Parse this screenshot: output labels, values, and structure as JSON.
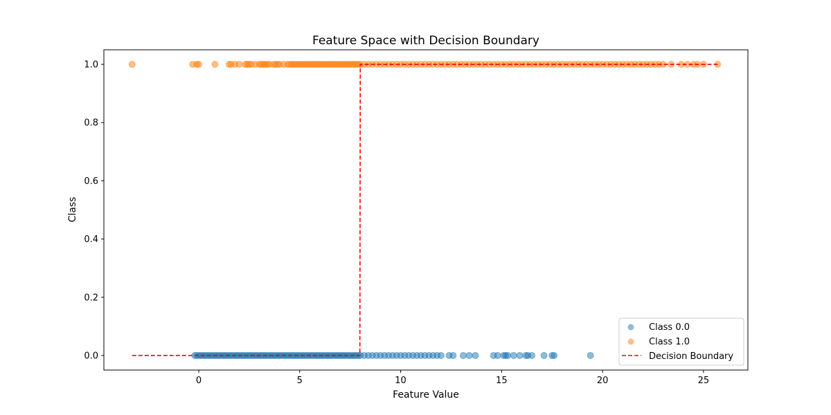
{
  "chart_data": {
    "type": "scatter",
    "title": "Feature Space with Decision Boundary",
    "xlabel": "Feature Value",
    "ylabel": "Class",
    "xlim": [
      -4.7,
      27.2
    ],
    "ylim": [
      -0.05,
      1.05
    ],
    "xticks": [
      0,
      5,
      10,
      15,
      20,
      25
    ],
    "yticks": [
      0.0,
      0.2,
      0.4,
      0.6,
      0.8,
      1.0
    ],
    "xtick_labels": [
      "0",
      "5",
      "10",
      "15",
      "20",
      "25"
    ],
    "ytick_labels": [
      "0.0",
      "0.2",
      "0.4",
      "0.6",
      "0.8",
      "1.0"
    ],
    "grid": false,
    "legend_position": "bottom-right",
    "series": [
      {
        "name": "Class 0.0",
        "color": "#1f77b4",
        "y": 0.0,
        "x": [
          -0.2,
          -0.1,
          0.0,
          0.1,
          0.2,
          0.3,
          0.4,
          0.5,
          0.6,
          0.7,
          0.8,
          0.9,
          1.0,
          1.1,
          1.2,
          1.3,
          1.4,
          1.5,
          1.6,
          1.7,
          1.8,
          1.9,
          2.0,
          2.1,
          2.2,
          2.3,
          2.4,
          2.5,
          2.6,
          2.7,
          2.8,
          2.9,
          3.0,
          3.1,
          3.2,
          3.3,
          3.4,
          3.5,
          3.6,
          3.7,
          3.8,
          3.9,
          4.0,
          4.1,
          4.2,
          4.3,
          4.4,
          4.5,
          4.6,
          4.7,
          4.8,
          4.9,
          5.0,
          5.1,
          5.2,
          5.3,
          5.4,
          5.5,
          5.6,
          5.7,
          5.8,
          5.9,
          6.0,
          6.1,
          6.2,
          6.3,
          6.4,
          6.5,
          6.6,
          6.7,
          6.8,
          6.9,
          7.0,
          7.1,
          7.2,
          7.3,
          7.4,
          7.5,
          7.6,
          7.7,
          7.8,
          7.9,
          8.0,
          8.2,
          8.4,
          8.6,
          8.8,
          9.0,
          9.2,
          9.4,
          9.6,
          9.8,
          10.0,
          10.2,
          10.4,
          10.6,
          10.8,
          11.0,
          11.2,
          11.4,
          11.6,
          11.8,
          12.0,
          12.4,
          12.6,
          13.1,
          13.4,
          13.7,
          14.6,
          14.8,
          15.1,
          15.2,
          15.3,
          15.6,
          15.9,
          16.2,
          16.3,
          16.5,
          17.1,
          17.5,
          17.6,
          19.4
        ]
      },
      {
        "name": "Class 1.0",
        "color": "#ff7f0e",
        "y": 1.0,
        "x": [
          -3.3,
          -0.3,
          -0.1,
          0.0,
          0.8,
          1.5,
          1.6,
          1.8,
          2.0,
          2.3,
          2.4,
          2.5,
          2.6,
          2.8,
          3.0,
          3.1,
          3.2,
          3.3,
          3.4,
          3.5,
          3.7,
          3.8,
          3.9,
          4.0,
          4.2,
          4.4,
          4.5,
          4.6,
          4.7,
          4.8,
          4.9,
          5.0,
          5.1,
          5.2,
          5.3,
          5.4,
          5.5,
          5.6,
          5.7,
          5.8,
          5.9,
          6.0,
          6.1,
          6.2,
          6.3,
          6.4,
          6.5,
          6.6,
          6.7,
          6.8,
          6.9,
          7.0,
          7.1,
          7.2,
          7.3,
          7.4,
          7.5,
          7.6,
          7.7,
          7.8,
          7.9,
          8.0,
          8.2,
          8.4,
          8.6,
          8.8,
          9.0,
          9.2,
          9.4,
          9.6,
          9.8,
          10.0,
          10.2,
          10.4,
          10.6,
          10.8,
          11.0,
          11.2,
          11.4,
          11.6,
          11.8,
          12.0,
          12.2,
          12.4,
          12.6,
          12.8,
          13.0,
          13.2,
          13.4,
          13.6,
          13.8,
          14.0,
          14.2,
          14.4,
          14.6,
          14.8,
          15.0,
          15.2,
          15.4,
          15.6,
          15.8,
          16.0,
          16.2,
          16.4,
          16.6,
          16.8,
          17.0,
          17.2,
          17.4,
          17.6,
          17.8,
          18.0,
          18.2,
          18.4,
          18.6,
          18.8,
          19.0,
          19.2,
          19.4,
          19.6,
          19.8,
          20.0,
          20.2,
          20.4,
          20.6,
          20.8,
          21.0,
          21.2,
          21.4,
          21.6,
          21.8,
          22.0,
          22.2,
          22.4,
          22.6,
          22.8,
          23.0,
          23.4,
          23.9,
          24.2,
          24.5,
          24.7,
          25.0,
          25.7
        ]
      }
    ],
    "lines": [
      {
        "name": "Decision Boundary",
        "color": "#ff0000",
        "style": "dashed",
        "x": [
          -3.3,
          7.98,
          8.0,
          25.7
        ],
        "y": [
          0.0,
          0.0,
          1.0,
          1.0
        ]
      }
    ]
  }
}
